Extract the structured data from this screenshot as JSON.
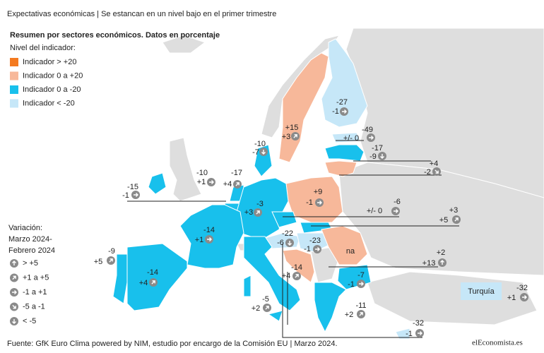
{
  "header": {
    "title": "Expectativas económicas | Se estancan en un nivel bajo en el primer trimestre",
    "subtitle": "Resumen por sectores económicos. Datos en porcentaje"
  },
  "legend": {
    "title": "Nivel del indicador:",
    "items": [
      {
        "label": "Indicador > +20",
        "color": "#f47a20"
      },
      {
        "label": "Indicador 0 a +20",
        "color": "#f7b89a"
      },
      {
        "label": "Indicador 0 a -20",
        "color": "#18c0ec"
      },
      {
        "label": "Indicador < -20",
        "color": "#c6e7f8"
      }
    ]
  },
  "variation": {
    "title": [
      "Variación:",
      "Marzo 2024-",
      "Febrero 2024"
    ],
    "items": [
      "> +5",
      "+1 a +5",
      "-1 a +1",
      "-5 a -1",
      "< -5"
    ]
  },
  "countries": [
    {
      "level": "-27",
      "change": "-1"
    },
    {
      "level": "+15",
      "change": "+3"
    },
    {
      "level": "-49",
      "change": "+/- 0"
    },
    {
      "level": "-17",
      "change": "-9"
    },
    {
      "level": "+4",
      "change": "-2"
    },
    {
      "level": "-10",
      "change": "-7"
    },
    {
      "level": "-10",
      "change": "+1"
    },
    {
      "level": "-17",
      "change": "+4"
    },
    {
      "level": "-15",
      "change": "-1"
    },
    {
      "level": "+9",
      "change": "-1"
    },
    {
      "level": "-3",
      "change": "+3"
    },
    {
      "level": "-6",
      "change": "+/- 0"
    },
    {
      "level": "+3",
      "change": "+5"
    },
    {
      "level": "-14",
      "change": "+1"
    },
    {
      "level": "-22",
      "change": "-6"
    },
    {
      "level": "-23",
      "change": "-1"
    },
    {
      "level": "-14",
      "change": "+4"
    },
    {
      "level": "+2",
      "change": "+13"
    },
    {
      "level": "-7",
      "change": "-1"
    },
    {
      "level": "-9",
      "change": "+5"
    },
    {
      "level": "-14",
      "change": "+4"
    },
    {
      "level": "-5",
      "change": "+2"
    },
    {
      "level": "-11",
      "change": "+2"
    },
    {
      "level": "-32",
      "change": "-1"
    },
    {
      "level": "-32",
      "change": "+1"
    }
  ],
  "map_labels": {
    "na": "na",
    "turkey": "Turquía"
  },
  "footer": {
    "source": "Fuente: GfK Euro Clima powered by NIM, estudio por encargo de la Comisión EU | Marzo 2024.",
    "logo": "elEconomista.es"
  }
}
